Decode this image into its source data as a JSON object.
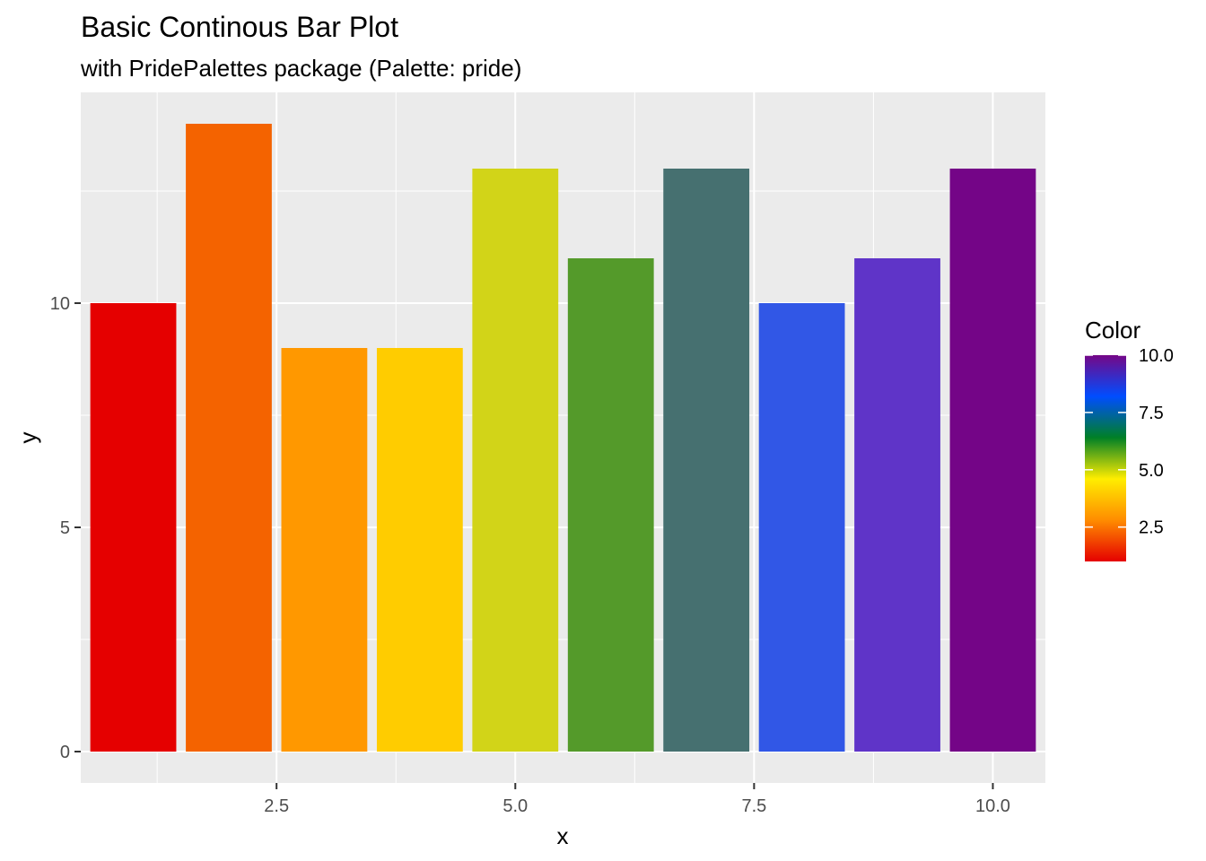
{
  "chart_data": {
    "type": "bar",
    "title": "Basic Continous Bar Plot",
    "subtitle": "with PridePalettes package (Palette: pride)",
    "xlabel": "x",
    "ylabel": "y",
    "x": [
      1,
      2,
      3,
      4,
      5,
      6,
      7,
      8,
      9,
      10
    ],
    "values": [
      10,
      14,
      9,
      9,
      13,
      11,
      13,
      10,
      11,
      13
    ],
    "bar_colors": [
      "#e50000",
      "#f46300",
      "#ff9800",
      "#ffcc00",
      "#d2d418",
      "#549a2a",
      "#467070",
      "#3157e6",
      "#5f34c8",
      "#740587"
    ],
    "xlim": [
      0.45,
      10.55
    ],
    "ylim": [
      -0.7,
      14.7
    ],
    "x_ticks": [
      2.5,
      5.0,
      7.5,
      10.0
    ],
    "x_tick_labels": [
      "2.5",
      "5.0",
      "7.5",
      "10.0"
    ],
    "y_ticks": [
      0,
      5,
      10
    ],
    "y_tick_labels": [
      "0",
      "5",
      "10"
    ],
    "grid": true,
    "legend": {
      "title": "Color",
      "placement": "right",
      "type": "colorbar",
      "range": [
        1,
        10
      ],
      "ticks": [
        2.5,
        5.0,
        7.5,
        10.0
      ],
      "tick_labels": [
        "2.5",
        "5.0",
        "7.5",
        "10.0"
      ],
      "gradient_colors": [
        "#e50000",
        "#ff8c00",
        "#ffed00",
        "#008026",
        "#004dff",
        "#750787"
      ]
    },
    "panel_background": "#ebebeb",
    "grid_color": "#ffffff"
  }
}
